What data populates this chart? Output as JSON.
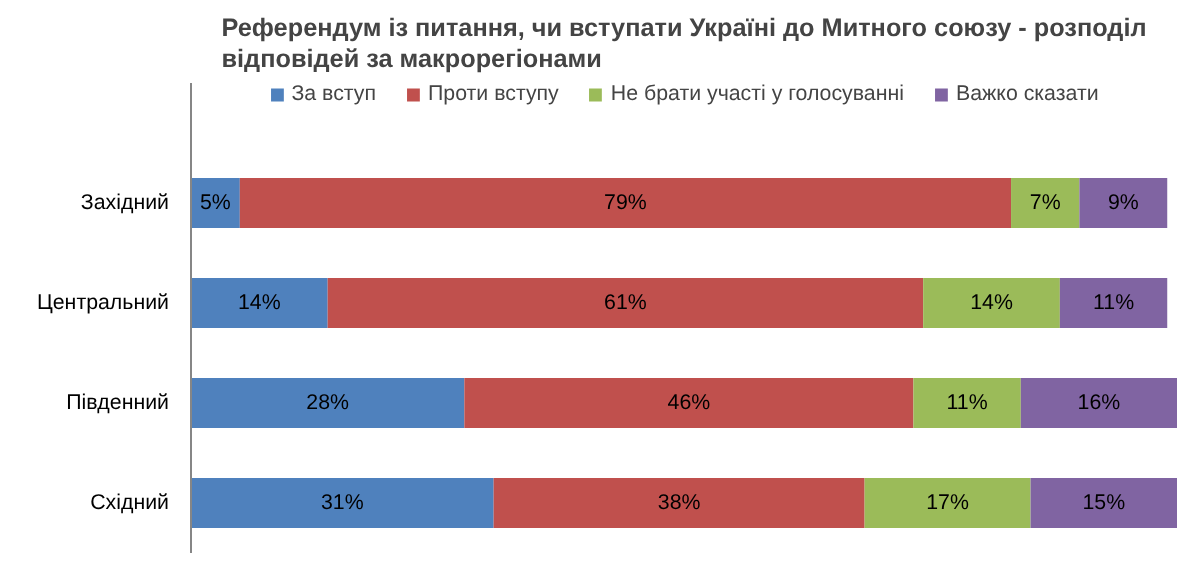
{
  "chart_data": {
    "type": "bar",
    "orientation": "horizontal",
    "stacked": true,
    "title": "Референдум із питання, чи вступати Україні до Митного союзу - розподіл відповідей за макрорегіонами",
    "categories": [
      "Західний",
      "Центральний",
      "Південний",
      "Східний"
    ],
    "series": [
      {
        "name": "За вступ",
        "color": "#4f81bd",
        "values": [
          5,
          14,
          28,
          31
        ],
        "value_labels": [
          "5%",
          "14%",
          "28%",
          "31%"
        ]
      },
      {
        "name": "Проти вступу",
        "color": "#c0504d",
        "values": [
          79,
          61,
          46,
          38
        ],
        "value_labels": [
          "79%",
          "61%",
          "46%",
          "38%"
        ]
      },
      {
        "name": "Не брати участі у голосуванні",
        "color": "#9bbb59",
        "values": [
          7,
          14,
          11,
          17
        ],
        "value_labels": [
          "7%",
          "14%",
          "11%",
          "17%"
        ]
      },
      {
        "name": "Важко сказати",
        "color": "#8064a2",
        "values": [
          9,
          11,
          16,
          15
        ],
        "value_labels": [
          "9%",
          "11%",
          "16%",
          "15%"
        ]
      }
    ],
    "legend": "top",
    "grid": false
  }
}
